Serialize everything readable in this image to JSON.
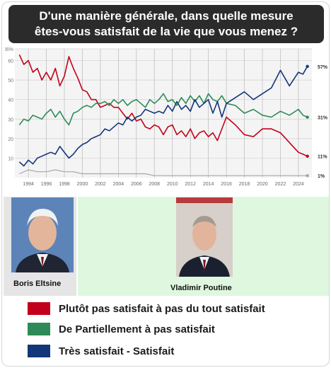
{
  "title_lines": [
    "D'une manière générale, dans quelle mesure",
    "êtes-vous satisfait de la vie que vous menez ?"
  ],
  "captions": {
    "yeltsin": "Boris Eltsine",
    "putin": "Vladimir Poutine"
  },
  "legend": [
    {
      "label": "Plutôt pas satisfait à pas du tout satisfait",
      "color": "#c3001b"
    },
    {
      "label": "De Partiellement à pas satisfait",
      "color": "#2e8b57"
    },
    {
      "label": "Très satisfait - Satisfait",
      "color": "#13357a"
    }
  ],
  "chart_data": {
    "type": "line",
    "xlim": [
      1992.5,
      2025.5
    ],
    "ylim": [
      0,
      66
    ],
    "y_ticks": [
      {
        "value": 66,
        "label": "66%"
      },
      {
        "value": 60,
        "label": "60"
      },
      {
        "value": 50,
        "label": "50"
      },
      {
        "value": 40,
        "label": "40"
      },
      {
        "value": 30,
        "label": "30"
      },
      {
        "value": 20,
        "label": "20"
      },
      {
        "value": 10,
        "label": "10"
      }
    ],
    "x_ticks": [
      "1994",
      "1996",
      "1998",
      "2000",
      "2002",
      "2004",
      "2006",
      "2008",
      "2010",
      "2012",
      "2014",
      "2016",
      "2018",
      "2020",
      "2022",
      "2024"
    ],
    "grid": true,
    "end_labels": [
      {
        "value": 57,
        "label": "57%"
      },
      {
        "value": 31,
        "label": "31%"
      },
      {
        "value": 11,
        "label": "11%"
      },
      {
        "value": 1,
        "label": "1%"
      }
    ],
    "series": [
      {
        "color": "#c3001b",
        "x": [
          1993,
          1993.5,
          1994,
          1994.5,
          1995,
          1995.5,
          1996,
          1996.5,
          1997,
          1997.5,
          1998,
          1998.5,
          1999,
          1999.5,
          2000,
          2000.5,
          2001,
          2001.5,
          2002,
          2002.5,
          2003,
          2003.5,
          2004,
          2004.5,
          2005,
          2005.5,
          2006,
          2006.5,
          2007,
          2007.5,
          2008,
          2008.5,
          2009,
          2009.5,
          2010,
          2010.5,
          2011,
          2011.5,
          2012,
          2012.5,
          2013,
          2013.5,
          2014,
          2014.5,
          2015,
          2015.5,
          2016,
          2017,
          2018,
          2019,
          2020,
          2021,
          2022,
          2023,
          2024,
          2024.5,
          2025
        ],
        "y": [
          63,
          58,
          60,
          54,
          56,
          50,
          54,
          50,
          56,
          47,
          52,
          62,
          56,
          51,
          45,
          44,
          40,
          40,
          36,
          37,
          38,
          36,
          36,
          33,
          30,
          33,
          29,
          30,
          26,
          25,
          27,
          26,
          22,
          26,
          27,
          22,
          24,
          21,
          25,
          20,
          23,
          24,
          21,
          23,
          19,
          25,
          31,
          27,
          22,
          21,
          25,
          25,
          23,
          18,
          13,
          12,
          11
        ]
      },
      {
        "color": "#2e8b57",
        "x": [
          1993,
          1993.5,
          1994,
          1994.5,
          1995,
          1995.5,
          1996,
          1996.5,
          1997,
          1997.5,
          1998,
          1998.5,
          1999,
          1999.5,
          2000,
          2000.5,
          2001,
          2001.5,
          2002,
          2002.5,
          2003,
          2003.5,
          2004,
          2004.5,
          2005,
          2005.5,
          2006,
          2006.5,
          2007,
          2007.5,
          2008,
          2008.5,
          2009,
          2009.5,
          2010,
          2010.5,
          2011,
          2011.5,
          2012,
          2012.5,
          2013,
          2013.5,
          2014,
          2014.5,
          2015,
          2015.5,
          2016,
          2017,
          2018,
          2019,
          2020,
          2021,
          2022,
          2023,
          2024,
          2024.5,
          2025
        ],
        "y": [
          27,
          30,
          29,
          32,
          31,
          30,
          33,
          35,
          31,
          34,
          30,
          27,
          33,
          34,
          36,
          37,
          36,
          38,
          38,
          39,
          37,
          40,
          38,
          40,
          37,
          39,
          40,
          38,
          36,
          40,
          38,
          40,
          43,
          39,
          40,
          37,
          41,
          38,
          42,
          39,
          42,
          38,
          43,
          40,
          39,
          42,
          38,
          37,
          33,
          35,
          32,
          31,
          34,
          32,
          35,
          32,
          31
        ]
      },
      {
        "color": "#13357a",
        "x": [
          1993,
          1993.5,
          1994,
          1994.5,
          1995,
          1995.5,
          1996,
          1996.5,
          1997,
          1997.5,
          1998,
          1998.5,
          1999,
          1999.5,
          2000,
          2000.5,
          2001,
          2001.5,
          2002,
          2002.5,
          2003,
          2003.5,
          2004,
          2004.5,
          2005,
          2005.5,
          2006,
          2006.5,
          2007,
          2007.5,
          2008,
          2008.5,
          2009,
          2009.5,
          2010,
          2010.5,
          2011,
          2011.5,
          2012,
          2012.5,
          2013,
          2013.5,
          2014,
          2014.5,
          2015,
          2015.5,
          2016,
          2017,
          2018,
          2019,
          2020,
          2021,
          2022,
          2023,
          2024,
          2024.5,
          2025
        ],
        "y": [
          8,
          6,
          9,
          7,
          10,
          11,
          12,
          13,
          12,
          16,
          13,
          10,
          12,
          15,
          17,
          18,
          20,
          21,
          22,
          25,
          24,
          26,
          28,
          27,
          31,
          29,
          31,
          32,
          35,
          34,
          33,
          34,
          33,
          37,
          34,
          39,
          35,
          37,
          34,
          40,
          36,
          38,
          40,
          33,
          39,
          31,
          38,
          41,
          44,
          40,
          43,
          46,
          55,
          47,
          54,
          53,
          57
        ]
      },
      {
        "color": "#a7a7a7",
        "x": [
          1993,
          1994,
          1995,
          1996,
          1997,
          1998,
          1999,
          2000,
          2001,
          2002,
          2003,
          2004,
          2005,
          2006,
          2007,
          2008,
          2009,
          2010,
          2011,
          2012,
          2013,
          2014,
          2015,
          2016,
          2017,
          2018,
          2019,
          2020,
          2021,
          2022,
          2023,
          2024,
          2025
        ],
        "y": [
          2,
          4,
          3,
          3,
          4,
          3,
          3,
          2,
          2,
          2,
          2,
          2,
          2,
          2,
          2,
          1,
          1,
          1,
          1,
          1,
          1,
          1,
          1,
          1,
          1,
          1,
          1,
          1,
          1,
          1,
          1,
          1,
          1
        ]
      }
    ]
  }
}
